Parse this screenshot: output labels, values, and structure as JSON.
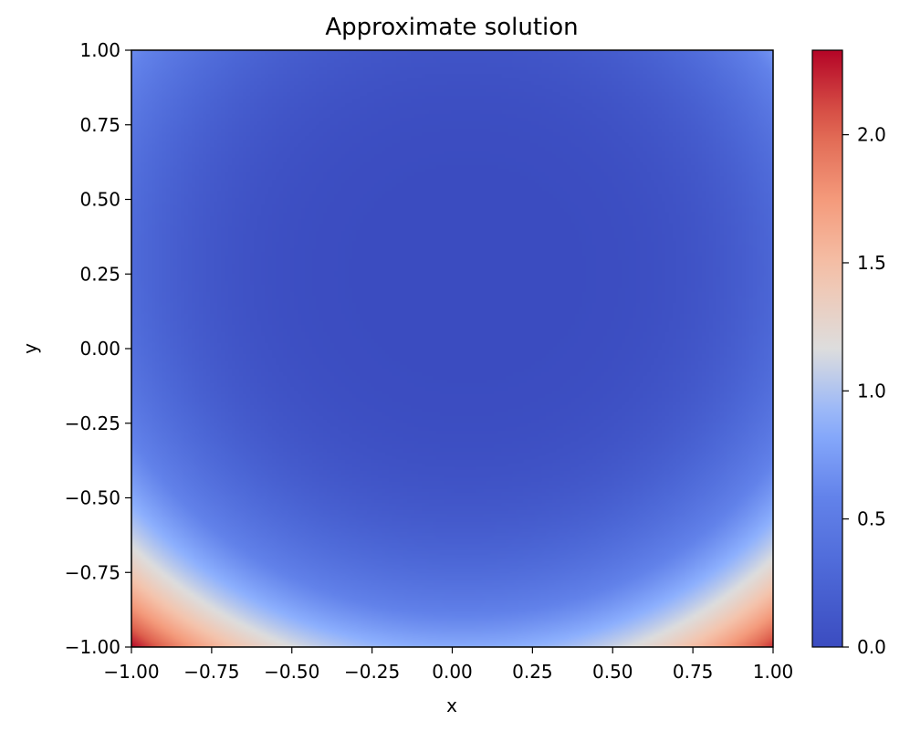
{
  "chart_data": {
    "type": "heatmap",
    "title": "Approximate solution",
    "xlabel": "x",
    "ylabel": "y",
    "xlim": [
      -1.0,
      1.0
    ],
    "ylim": [
      -1.0,
      1.0
    ],
    "xticks": [
      "−1.00",
      "−0.75",
      "−0.50",
      "−0.25",
      "0.00",
      "0.25",
      "0.50",
      "0.75",
      "1.00"
    ],
    "yticks": [
      "−1.00",
      "−0.75",
      "−0.50",
      "−0.25",
      "0.00",
      "0.25",
      "0.50",
      "0.75",
      "1.00"
    ],
    "colormap": "coolwarm",
    "colorbar": {
      "min": 0.0,
      "max": 2.33,
      "ticks": [
        "0.0",
        "0.5",
        "1.0",
        "1.5",
        "2.0"
      ]
    },
    "field": {
      "minimum_at": [
        0.05,
        0.25
      ],
      "minimum_value": 0.0,
      "corner_values": {
        "bottom_left": 2.33,
        "bottom_right": 2.2,
        "top_left": 0.65,
        "top_right": 0.7
      }
    },
    "grid": false,
    "colors": {
      "low": "#3b4cc0",
      "mid": "#dddddd",
      "high": "#b40426"
    }
  }
}
